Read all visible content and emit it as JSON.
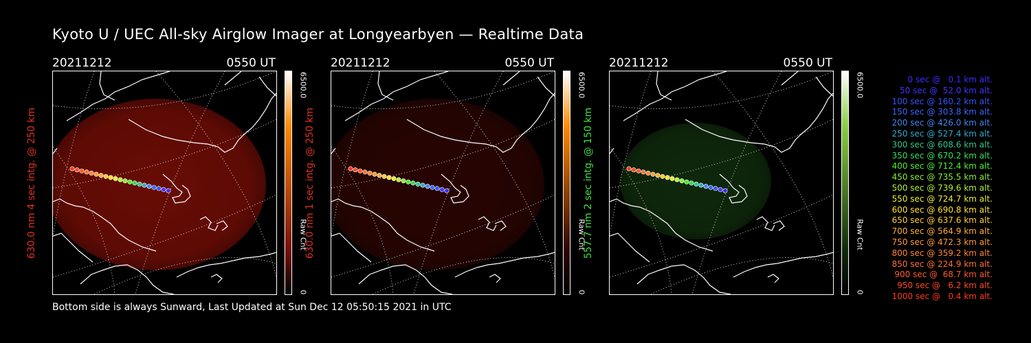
{
  "title": "Kyoto U / UEC All-sky Airglow Imager at Longyearbyen — Realtime Data",
  "footer": "Bottom side is always Sunward, Last Updated at Sun Dec 12 05:50:15 2021 in UTC",
  "panels": [
    {
      "date": "20211212",
      "time": "0550 UT",
      "ylabel": "630.0 nm 4 sec intg. @ 250 km",
      "label_color": "#e03020",
      "cbar_max": "6500.0",
      "cbar_min": "0",
      "cbar_label": "Raw Cnt",
      "glow_color": "#7a0e06",
      "glow_opacity": 0.85,
      "cbar_top": "#ff8800"
    },
    {
      "date": "20211212",
      "time": "0550 UT",
      "ylabel": "630.0 nm 1 sec intg. @ 250 km",
      "label_color": "#e03020",
      "cbar_max": "6500.0",
      "cbar_min": "0",
      "cbar_label": "Raw Cnt",
      "glow_color": "#2c0503",
      "glow_opacity": 0.9,
      "cbar_top": "#ff8800"
    },
    {
      "date": "20211212",
      "time": "0550 UT",
      "ylabel": "557.7 nm 2 sec intg. @ 150 km",
      "label_color": "#3fe040",
      "cbar_max": "6500.0",
      "cbar_min": "0",
      "cbar_label": "Raw Cnt",
      "glow_color": "#0f2a0c",
      "glow_opacity": 0.95,
      "cbar_top": "#88cc44"
    }
  ],
  "trajectory_legend": [
    {
      "text": "0 sec @   0.1 km alt.",
      "color": "#3a2cff"
    },
    {
      "text": "50 sec @  52.0 km alt.",
      "color": "#4433ff"
    },
    {
      "text": "100 sec @ 160.2 km alt.",
      "color": "#3355ff"
    },
    {
      "text": "150 sec @ 303.8 km alt.",
      "color": "#3a66ff"
    },
    {
      "text": "200 sec @ 426.0 km alt.",
      "color": "#3f88ee"
    },
    {
      "text": "250 sec @ 527.4 km alt.",
      "color": "#33aacc"
    },
    {
      "text": "300 sec @ 608.6 km alt.",
      "color": "#2fc88a"
    },
    {
      "text": "350 sec @ 670.2 km alt.",
      "color": "#33e055"
    },
    {
      "text": "400 sec @ 712.4 km alt.",
      "color": "#4cee33"
    },
    {
      "text": "450 sec @ 735.5 km alt.",
      "color": "#88ee33"
    },
    {
      "text": "500 sec @ 739.6 km alt.",
      "color": "#b4f033"
    },
    {
      "text": "550 sec @ 724.7 km alt.",
      "color": "#e8ee33"
    },
    {
      "text": "600 sec @ 690.8 km alt.",
      "color": "#ffe033"
    },
    {
      "text": "650 sec @ 637.6 km alt.",
      "color": "#ffcc33"
    },
    {
      "text": "700 sec @ 564.9 km alt.",
      "color": "#ffb033"
    },
    {
      "text": "750 sec @ 472.3 km alt.",
      "color": "#ff9a33"
    },
    {
      "text": "800 sec @ 359.2 km alt.",
      "color": "#ff8533"
    },
    {
      "text": "850 sec @ 224.9 km alt.",
      "color": "#ff7033"
    },
    {
      "text": "900 sec @  68.7 km alt.",
      "color": "#ff5a2a"
    },
    {
      "text": "950 sec @   6.2 km alt.",
      "color": "#ff4a22"
    },
    {
      "text": "1000 sec @   0.4 km alt.",
      "color": "#ff3a1a"
    }
  ]
}
